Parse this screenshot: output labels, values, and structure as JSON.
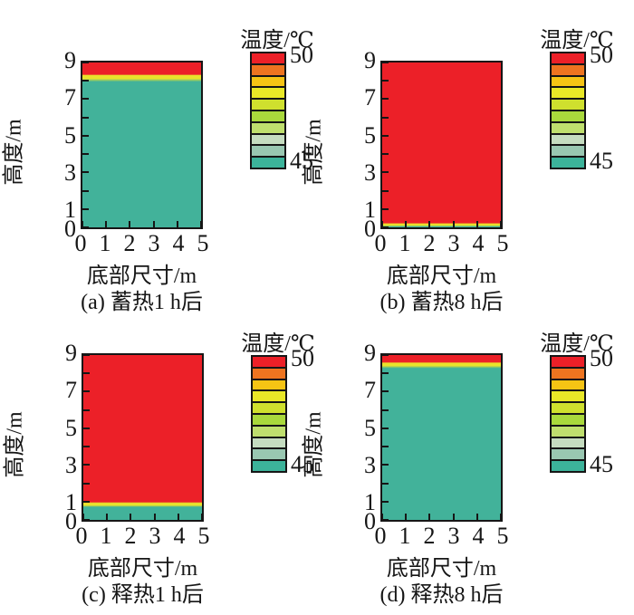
{
  "figure": {
    "axes": {
      "x_label": "底部尺寸/m",
      "y_label": "高度/m",
      "x_range": [
        0,
        5
      ],
      "y_range": [
        0,
        9
      ],
      "x_tick_marks": [
        0,
        1,
        2,
        3,
        4,
        5
      ],
      "y_tick_marks": [
        0,
        1,
        2,
        3,
        4,
        5,
        6,
        7,
        8,
        9
      ],
      "x_tick_labels": [
        {
          "t": "0",
          "v": 0
        },
        {
          "t": "1",
          "v": 1
        },
        {
          "t": "2",
          "v": 2
        },
        {
          "t": "3",
          "v": 3
        },
        {
          "t": "4",
          "v": 4
        },
        {
          "t": "5",
          "v": 5
        }
      ],
      "y_tick_labels": [
        {
          "t": "9",
          "v": 9
        },
        {
          "t": "7",
          "v": 7
        },
        {
          "t": "5",
          "v": 5
        },
        {
          "t": "3",
          "v": 3
        },
        {
          "t": "1",
          "v": 1
        },
        {
          "t": "0",
          "v": 0
        }
      ]
    },
    "colorbar": {
      "title": "温度/℃",
      "max_label": "50",
      "min_label": "45",
      "min": 45,
      "max": 50,
      "segment_step_c": 0.5,
      "colors_top_to_bottom": [
        "#ec2028",
        "#ee7420",
        "#f6c414",
        "#e9e827",
        "#cfe02e",
        "#a9d93c",
        "#bfdf6e",
        "#c5dcc0",
        "#99c7b1",
        "#3cb39a"
      ]
    }
  },
  "chart_data": [
    {
      "type": "heatmap",
      "title": "(a) 蓄热1 h后",
      "xlabel": "底部尺寸/m",
      "ylabel": "高度/m",
      "xlim": [
        0,
        5
      ],
      "ylim": [
        0,
        9
      ],
      "colorbar": {
        "label": "温度/℃",
        "min": 45,
        "max": 50
      },
      "regions": [
        {
          "temp_c": 50,
          "color": "#ec2028",
          "y_from": 8.35,
          "y_to": 9.0
        },
        {
          "temp_c": 47.5,
          "color": "#e9e32b",
          "y_from": 8.12,
          "y_to": 8.3
        },
        {
          "temp_c": 45,
          "color": "#42b29a",
          "y_from": 0.0,
          "y_to": 7.95
        }
      ]
    },
    {
      "type": "heatmap",
      "title": "(b) 蓄热8 h后",
      "xlabel": "底部尺寸/m",
      "ylabel": "高度/m",
      "xlim": [
        0,
        5
      ],
      "ylim": [
        0,
        9
      ],
      "colorbar": {
        "label": "温度/℃",
        "min": 45,
        "max": 50
      },
      "regions": [
        {
          "temp_c": 50,
          "color": "#ec2028",
          "y_from": 0.25,
          "y_to": 9.0
        },
        {
          "temp_c": 47.5,
          "color": "#e9e32b",
          "y_from": 0.1,
          "y_to": 0.18
        },
        {
          "temp_c": 45,
          "color": "#42b29a",
          "y_from": 0.0,
          "y_to": 0.05
        }
      ]
    },
    {
      "type": "heatmap",
      "title": "(c) 释热1 h后",
      "xlabel": "底部尺寸/m",
      "ylabel": "高度/m",
      "xlim": [
        0,
        5
      ],
      "ylim": [
        0,
        9
      ],
      "colorbar": {
        "label": "温度/℃",
        "min": 45,
        "max": 50
      },
      "regions": [
        {
          "temp_c": 50,
          "color": "#ec2028",
          "y_from": 0.98,
          "y_to": 9.0
        },
        {
          "temp_c": 47.5,
          "color": "#e9e32b",
          "y_from": 0.8,
          "y_to": 0.92
        },
        {
          "temp_c": 45,
          "color": "#42b29a",
          "y_from": 0.0,
          "y_to": 0.7
        }
      ]
    },
    {
      "type": "heatmap",
      "title": "(d) 释热8 h后",
      "xlabel": "底部尺寸/m",
      "ylabel": "高度/m",
      "xlim": [
        0,
        5
      ],
      "ylim": [
        0,
        9
      ],
      "colorbar": {
        "label": "温度/℃",
        "min": 45,
        "max": 50
      },
      "regions": [
        {
          "temp_c": 50,
          "color": "#ec2028",
          "y_from": 8.62,
          "y_to": 9.0
        },
        {
          "temp_c": 47.5,
          "color": "#e9e32b",
          "y_from": 8.42,
          "y_to": 8.56
        },
        {
          "temp_c": 45,
          "color": "#42b29a",
          "y_from": 0.0,
          "y_to": 8.28
        }
      ]
    }
  ]
}
